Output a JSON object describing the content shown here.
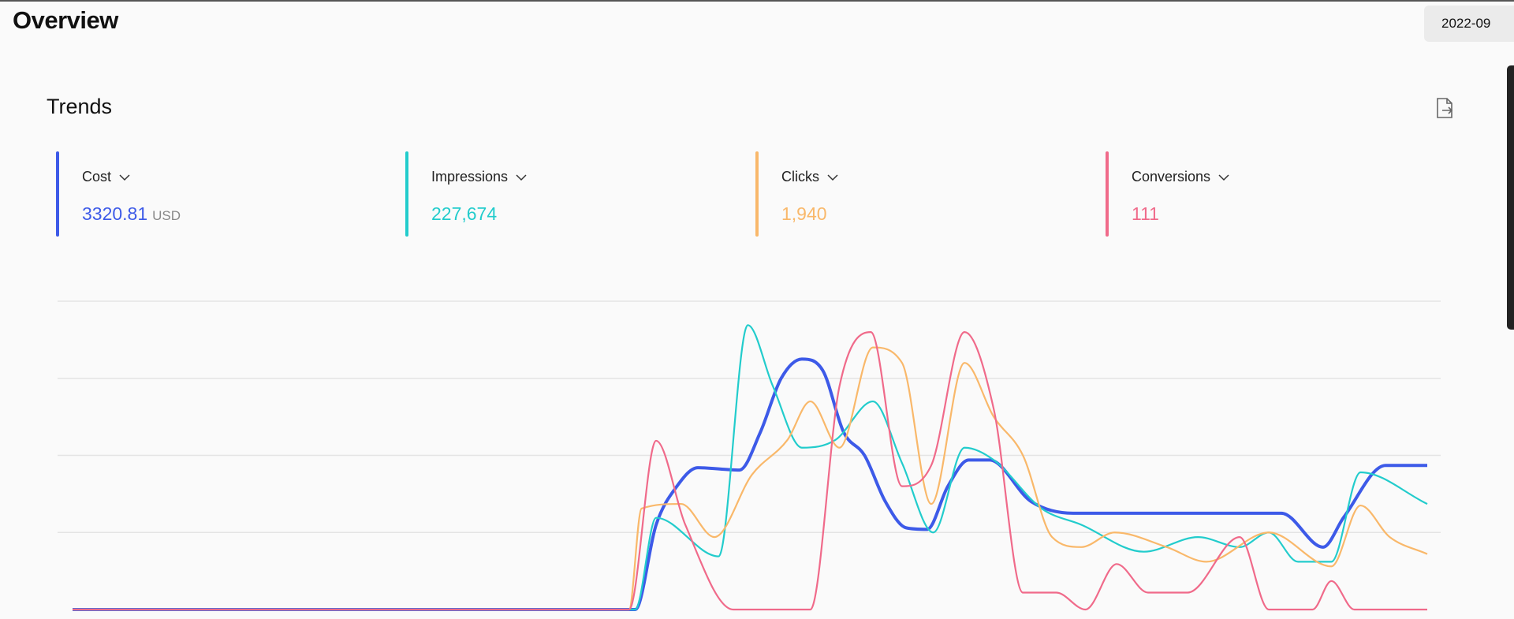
{
  "header": {
    "title": "Overview",
    "date_range": "2022-09"
  },
  "section": {
    "title": "Trends",
    "export_icon": "export-file-icon"
  },
  "metrics": [
    {
      "label": "Cost",
      "value": "3320.81",
      "unit": "USD",
      "color": "#3d5ae8"
    },
    {
      "label": "Impressions",
      "value": "227,674",
      "unit": "",
      "color": "#22cccc"
    },
    {
      "label": "Clicks",
      "value": "1,940",
      "unit": "",
      "color": "#f9b86a"
    },
    {
      "label": "Conversions",
      "value": "111",
      "unit": "",
      "color": "#f06a8a"
    }
  ],
  "chart_data": {
    "type": "line",
    "title": "",
    "xlabel": "",
    "ylabel": "",
    "xlim": [
      0,
      65
    ],
    "ylim": [
      0,
      4
    ],
    "grid": true,
    "smooth": true,
    "series": [
      {
        "name": "Cost",
        "color": "#3d5ae8",
        "points": [
          [
            0,
            0
          ],
          [
            27,
            0
          ],
          [
            28,
            1.1
          ],
          [
            29,
            1.6
          ],
          [
            30,
            1.84
          ],
          [
            32,
            1.81
          ],
          [
            33,
            2.3
          ],
          [
            34,
            3.0
          ],
          [
            35,
            3.25
          ],
          [
            36,
            3.1
          ],
          [
            37,
            2.3
          ],
          [
            38,
            2.0
          ],
          [
            39,
            1.4
          ],
          [
            40,
            1.06
          ],
          [
            41,
            1.04
          ],
          [
            42,
            1.6
          ],
          [
            43,
            1.94
          ],
          [
            44,
            1.94
          ],
          [
            46,
            1.4
          ],
          [
            48,
            1.25
          ],
          [
            58,
            1.25
          ],
          [
            60,
            0.81
          ],
          [
            61,
            1.2
          ],
          [
            63,
            1.87
          ],
          [
            65,
            1.87
          ]
        ]
      },
      {
        "name": "Impressions",
        "color": "#22cccc",
        "points": [
          [
            0,
            0
          ],
          [
            27,
            0
          ],
          [
            28,
            1.19
          ],
          [
            31,
            0.69
          ],
          [
            32.4,
            3.69
          ],
          [
            33.6,
            2.9
          ],
          [
            35,
            2.1
          ],
          [
            36.6,
            2.2
          ],
          [
            38.4,
            2.7
          ],
          [
            39.8,
            1.9
          ],
          [
            41.3,
            1.0
          ],
          [
            42.8,
            2.1
          ],
          [
            44.2,
            1.94
          ],
          [
            46.5,
            1.31
          ],
          [
            48.4,
            1.1
          ],
          [
            51.4,
            0.75
          ],
          [
            54,
            0.94
          ],
          [
            56,
            0.81
          ],
          [
            57.4,
            1.0
          ],
          [
            58.8,
            0.62
          ],
          [
            60.4,
            0.62
          ],
          [
            61.8,
            1.78
          ],
          [
            65,
            1.37
          ]
        ]
      },
      {
        "name": "Clicks",
        "color": "#f9b86a",
        "points": [
          [
            0,
            0
          ],
          [
            26.7,
            0
          ],
          [
            27.3,
            1.31
          ],
          [
            29.2,
            1.37
          ],
          [
            30.8,
            0.94
          ],
          [
            32.6,
            1.75
          ],
          [
            34.3,
            2.2
          ],
          [
            35.4,
            2.7
          ],
          [
            36.8,
            2.1
          ],
          [
            38.4,
            3.4
          ],
          [
            39.8,
            3.2
          ],
          [
            41.2,
            1.37
          ],
          [
            42.8,
            3.2
          ],
          [
            44.2,
            2.5
          ],
          [
            45.6,
            2.0
          ],
          [
            47,
            0.94
          ],
          [
            48.4,
            0.81
          ],
          [
            50,
            1.0
          ],
          [
            52.5,
            0.81
          ],
          [
            54.4,
            0.62
          ],
          [
            57.4,
            1.0
          ],
          [
            60.4,
            0.56
          ],
          [
            61.8,
            1.35
          ],
          [
            63.2,
            0.94
          ],
          [
            65,
            0.72
          ]
        ]
      },
      {
        "name": "Conversions",
        "color": "#f06a8a",
        "points": [
          [
            0,
            0
          ],
          [
            26.7,
            0
          ],
          [
            28,
            2.19
          ],
          [
            29.4,
            1.1
          ],
          [
            31.7,
            0
          ],
          [
            35.4,
            0
          ],
          [
            36.8,
            2.9
          ],
          [
            38.3,
            3.6
          ],
          [
            39.8,
            1.6
          ],
          [
            41.2,
            1.87
          ],
          [
            42.8,
            3.6
          ],
          [
            44.2,
            2.6
          ],
          [
            45.6,
            0.22
          ],
          [
            47.2,
            0.22
          ],
          [
            48.6,
            0
          ],
          [
            50.1,
            0.59
          ],
          [
            51.6,
            0.22
          ],
          [
            53.5,
            0.22
          ],
          [
            56,
            0.94
          ],
          [
            57.4,
            0
          ],
          [
            59.5,
            0
          ],
          [
            60.4,
            0.37
          ],
          [
            61.5,
            0
          ],
          [
            65,
            0
          ]
        ]
      }
    ]
  }
}
